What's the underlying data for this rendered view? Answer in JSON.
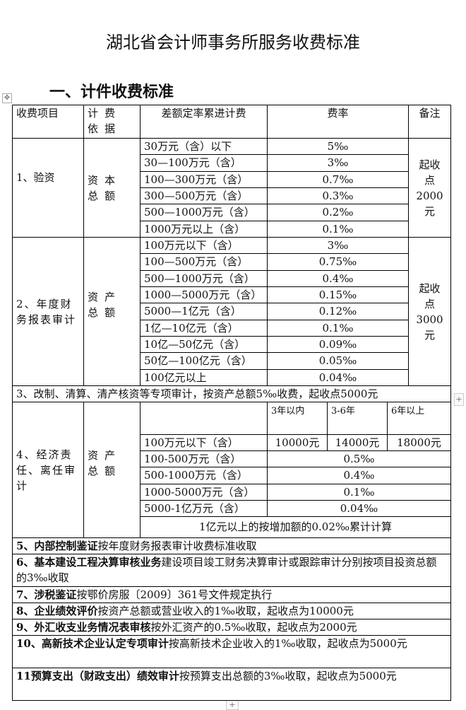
{
  "title": "湖北省会计师事务所服务收费标准",
  "section_heading": "一、计件收费标准",
  "header": {
    "item": "收费项目",
    "basis": "计费依据",
    "tier": "差额定率累进计费",
    "rate": "费率",
    "note": "备注"
  },
  "s1": {
    "item": "1、验资",
    "basis": "资本总额",
    "note": "起收\n点\n2000\n元",
    "rows": [
      {
        "tier": "30万元（含）以下",
        "rate": "5‰"
      },
      {
        "tier": "30—100万元（含）",
        "rate": "3‰"
      },
      {
        "tier": "100—300万元（含）",
        "rate": "0.7‰"
      },
      {
        "tier": "300—500万元（含）",
        "rate": "0.3‰"
      },
      {
        "tier": "500—1000万元（含）",
        "rate": "0.2‰"
      },
      {
        "tier": "1000万元以上（含）",
        "rate": "0.1‰"
      }
    ]
  },
  "s2": {
    "item": "2、年度财务报表审计",
    "basis": "资产总额",
    "note": "起收\n点\n3000\n元",
    "rows": [
      {
        "tier": "100万元以下（含）",
        "rate": "3‰"
      },
      {
        "tier": "100—500万元（含）",
        "rate": "0.75‰"
      },
      {
        "tier": "500—1000万元（含）",
        "rate": "0.4‰"
      },
      {
        "tier": "1000—5000万元（含）",
        "rate": "0.15‰"
      },
      {
        "tier": "5000—1亿元（含）",
        "rate": "0.12‰"
      },
      {
        "tier": "1亿—10亿元（含）",
        "rate": "0.1‰"
      },
      {
        "tier": "10亿—50亿元（含）",
        "rate": "0.09‰"
      },
      {
        "tier": "50亿—100亿元（含）",
        "rate": "0.05‰"
      },
      {
        "tier": "100亿元以上",
        "rate": "0.04‰"
      }
    ]
  },
  "s3": "3、改制、清算、清产核资等专项审计，按资产总额5‰收费，起收点5000元",
  "s4": {
    "item": "4、经济责任、离任审计",
    "basis": "资产总额",
    "periods": [
      "3年以内",
      "3-6年",
      "6年以上"
    ],
    "first": {
      "tier": "100万元以下（含）",
      "fees": [
        "10000元",
        "14000元",
        "18000元"
      ]
    },
    "rows": [
      {
        "tier": "100-500万元（含）",
        "rate": "0.5‰"
      },
      {
        "tier": "500-1000万元（含）",
        "rate": "0.4‰"
      },
      {
        "tier": "1000-5000万元（含）",
        "rate": "0.1‰"
      },
      {
        "tier": "5000-1亿万元（含）",
        "rate": "0.04‰"
      }
    ],
    "above": "1亿元以上的按增加额的0.02‰累计计算"
  },
  "items": [
    {
      "bold": "5、内部控制鉴证",
      "text": "按年度财务报表审计收费标准收取"
    },
    {
      "bold": "6、基本建设工程决算审核业务",
      "text": "建设项目竣工财务决算审计或跟踪审计分别按项目投资总额的3‰收取"
    },
    {
      "bold": "7、涉税鉴证",
      "text": "按鄂价房服〔2009〕361号文件规定执行"
    },
    {
      "bold": "8、企业绩效评价",
      "text": "按资产总额或营业收入的1‰收取，起收点为10000元"
    },
    {
      "bold": "9、外汇收支业务情况表审核",
      "text": "按外汇资产的0.5‰收取，起收点为2000元"
    },
    {
      "bold": "10、高新技术企业认定专项审计",
      "text": "按高新技术企业收入的1‰收取，起收点为5000元"
    },
    {
      "bold": "11预算支出（财政支出）绩效审计",
      "text": "按预算支出总额的3‰收取，起收点为5000元"
    }
  ],
  "controls": {
    "move": "✥",
    "add": "+"
  }
}
